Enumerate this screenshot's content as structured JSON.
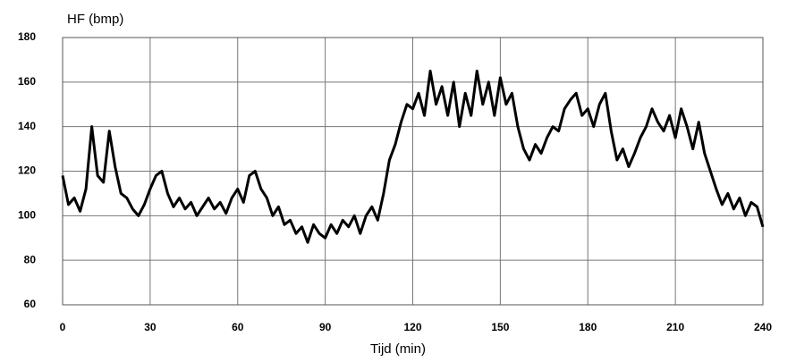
{
  "chart_data": {
    "type": "line",
    "y_label": "HF (bmp)",
    "x_label": "Tijd (min)",
    "x": [
      0,
      2,
      4,
      6,
      8,
      10,
      12,
      14,
      16,
      18,
      20,
      22,
      24,
      26,
      28,
      30,
      32,
      34,
      36,
      38,
      40,
      42,
      44,
      46,
      48,
      50,
      52,
      54,
      56,
      58,
      60,
      62,
      64,
      66,
      68,
      70,
      72,
      74,
      76,
      78,
      80,
      82,
      84,
      86,
      88,
      90,
      92,
      94,
      96,
      98,
      100,
      102,
      104,
      106,
      108,
      110,
      112,
      114,
      116,
      118,
      120,
      122,
      124,
      126,
      128,
      130,
      132,
      134,
      136,
      138,
      140,
      142,
      144,
      146,
      148,
      150,
      152,
      154,
      156,
      158,
      160,
      162,
      164,
      166,
      168,
      170,
      172,
      174,
      176,
      178,
      180,
      182,
      184,
      186,
      188,
      190,
      192,
      194,
      196,
      198,
      200,
      202,
      204,
      206,
      208,
      210,
      212,
      214,
      216,
      218,
      220,
      222,
      224,
      226,
      228,
      230,
      232,
      234,
      236,
      238,
      240
    ],
    "series": [
      {
        "name": "HF",
        "color": "#000000",
        "values": [
          118,
          105,
          108,
          102,
          112,
          140,
          118,
          115,
          138,
          122,
          110,
          108,
          103,
          100,
          105,
          112,
          118,
          120,
          110,
          104,
          108,
          103,
          106,
          100,
          104,
          108,
          103,
          106,
          101,
          108,
          112,
          106,
          118,
          120,
          112,
          108,
          100,
          104,
          96,
          98,
          92,
          95,
          88,
          96,
          92,
          90,
          96,
          92,
          98,
          95,
          100,
          92,
          100,
          104,
          98,
          110,
          125,
          132,
          142,
          150,
          148,
          155,
          145,
          165,
          150,
          158,
          145,
          160,
          140,
          155,
          145,
          165,
          150,
          160,
          145,
          162,
          150,
          155,
          140,
          130,
          125,
          132,
          128,
          135,
          140,
          138,
          148,
          152,
          155,
          145,
          148,
          140,
          150,
          155,
          138,
          125,
          130,
          122,
          128,
          135,
          140,
          148,
          142,
          138,
          145,
          135,
          148,
          140,
          130,
          142,
          128,
          120,
          112,
          105,
          110,
          103,
          108,
          100,
          106,
          104,
          95
        ]
      }
    ],
    "xlim": [
      0,
      240
    ],
    "xticks": [
      0,
      30,
      60,
      90,
      120,
      150,
      180,
      210,
      240
    ],
    "ylim": [
      60,
      180
    ],
    "yticks": [
      60,
      80,
      100,
      120,
      140,
      160,
      180
    ],
    "grid": true
  }
}
